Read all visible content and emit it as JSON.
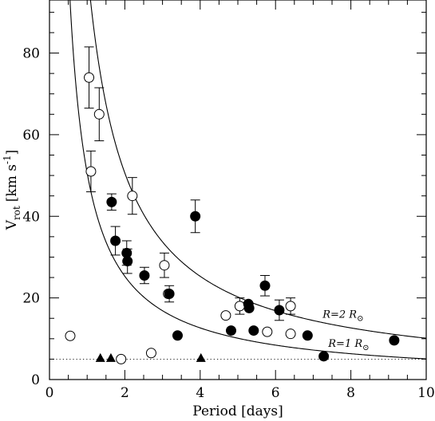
{
  "chart_data": {
    "type": "scatter",
    "title": "",
    "xlabel": "Period [days]",
    "ylabel": {
      "main": "V",
      "sub": "rot",
      "unit": "[km s",
      "sup": "-1",
      "close": "]"
    },
    "xlim": [
      0,
      10
    ],
    "ylim": [
      0,
      93
    ],
    "xticks": [
      0,
      2,
      4,
      6,
      8,
      10
    ],
    "yticks": [
      0,
      20,
      40,
      60,
      80
    ],
    "grid": false,
    "series": [
      {
        "marker": "circle-open",
        "points": [
          {
            "x": 0.55,
            "y": 10.7
          },
          {
            "x": 1.05,
            "y": 74,
            "err": 7.5
          },
          {
            "x": 1.1,
            "y": 51,
            "err": 5
          },
          {
            "x": 1.32,
            "y": 65,
            "err": 6.5
          },
          {
            "x": 1.9,
            "y": 5
          },
          {
            "x": 2.2,
            "y": 45,
            "err": 4.5
          },
          {
            "x": 2.7,
            "y": 6.5
          },
          {
            "x": 3.05,
            "y": 28,
            "err": 3
          },
          {
            "x": 3.15,
            "y": 21
          },
          {
            "x": 4.68,
            "y": 15.7
          },
          {
            "x": 5.05,
            "y": 18,
            "err": 2
          },
          {
            "x": 5.78,
            "y": 11.7
          },
          {
            "x": 6.4,
            "y": 11.2
          },
          {
            "x": 6.4,
            "y": 18,
            "err": 2
          }
        ]
      },
      {
        "marker": "circle-filled",
        "points": [
          {
            "x": 1.65,
            "y": 43.5,
            "err": 2
          },
          {
            "x": 1.75,
            "y": 34,
            "err": 3.5
          },
          {
            "x": 2.05,
            "y": 31,
            "err": 3
          },
          {
            "x": 2.07,
            "y": 29,
            "err": 3
          },
          {
            "x": 2.52,
            "y": 25.5,
            "err": 2
          },
          {
            "x": 3.18,
            "y": 21,
            "err": 2
          },
          {
            "x": 3.4,
            "y": 10.8
          },
          {
            "x": 3.87,
            "y": 40,
            "err": 4
          },
          {
            "x": 4.82,
            "y": 12
          },
          {
            "x": 5.28,
            "y": 18.5
          },
          {
            "x": 5.3,
            "y": 17.5
          },
          {
            "x": 5.42,
            "y": 12
          },
          {
            "x": 5.72,
            "y": 23,
            "err": 2.5
          },
          {
            "x": 6.1,
            "y": 17,
            "err": 2.5
          },
          {
            "x": 6.85,
            "y": 10.8
          },
          {
            "x": 7.28,
            "y": 5.7
          },
          {
            "x": 9.15,
            "y": 9.6
          }
        ]
      },
      {
        "marker": "triangle-filled",
        "points": [
          {
            "x": 1.35,
            "y": 5.3
          },
          {
            "x": 1.63,
            "y": 5.3
          },
          {
            "x": 4.02,
            "y": 5.3
          }
        ]
      }
    ],
    "curves": [
      {
        "label": "R=1",
        "radius": 1,
        "label_x": 7.4
      },
      {
        "label": "R=2",
        "radius": 2,
        "label_x": 7.25
      }
    ],
    "curve_label_unit": "R",
    "curve_label_sun": "⊙",
    "reference_line": {
      "y": 5,
      "style": "dotted"
    }
  }
}
